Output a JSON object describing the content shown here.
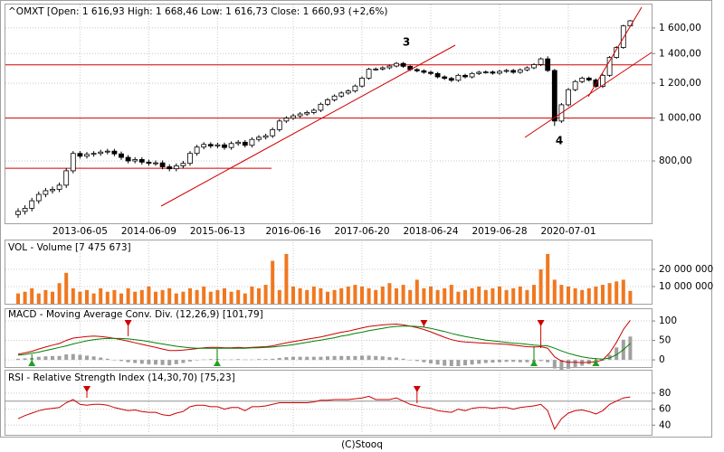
{
  "chart_data": [
    {
      "type": "candlestick",
      "title": "^OMXT [Open: 1 616,93  High: 1 668,46  Low: 1 616,73  Close: 1 660,93  (+2,6%)",
      "categories": [
        null,
        null,
        null,
        null,
        null,
        null,
        null,
        null,
        null,
        "2013-06-05",
        null,
        null,
        null,
        null,
        null,
        null,
        null,
        null,
        null,
        "2014-06-09",
        null,
        null,
        null,
        null,
        null,
        null,
        null,
        null,
        null,
        "2015-06-13",
        null,
        null,
        null,
        null,
        null,
        null,
        null,
        null,
        null,
        null,
        "2016-06-16",
        null,
        null,
        null,
        null,
        null,
        null,
        null,
        null,
        null,
        "2017-06-20",
        null,
        null,
        null,
        null,
        null,
        null,
        null,
        null,
        null,
        "2018-06-24",
        null,
        null,
        null,
        null,
        null,
        null,
        null,
        null,
        null,
        "2019-06-28",
        null,
        null,
        null,
        null,
        null,
        null,
        null,
        null,
        null,
        "2020-07-01",
        null,
        null,
        null,
        null,
        null,
        null,
        null,
        null,
        null
      ],
      "open": [
        605,
        615,
        625,
        650,
        672,
        685,
        690,
        705,
        760,
        832,
        820,
        828,
        832,
        838,
        842,
        830,
        815,
        800,
        806,
        795,
        790,
        792,
        776,
        768,
        780,
        790,
        832,
        860,
        872,
        865,
        870,
        858,
        876,
        882,
        868,
        895,
        905,
        912,
        942,
        985,
        1000,
        1012,
        1022,
        1030,
        1042,
        1075,
        1100,
        1122,
        1140,
        1152,
        1182,
        1232,
        1290,
        1292,
        1300,
        1312,
        1330,
        1310,
        1288,
        1280,
        1270,
        1262,
        1240,
        1230,
        1218,
        1250,
        1240,
        1262,
        1270,
        1272,
        1264,
        1276,
        1282,
        1270,
        1286,
        1300,
        1322,
        1362,
        1282,
        985,
        1072,
        1160,
        1210,
        1232,
        1220,
        1180,
        1250,
        1372,
        1445,
        1617
      ],
      "high": [
        625,
        635,
        660,
        682,
        695,
        700,
        715,
        770,
        842,
        842,
        838,
        842,
        848,
        852,
        852,
        840,
        825,
        816,
        816,
        805,
        802,
        802,
        786,
        790,
        800,
        842,
        870,
        882,
        882,
        880,
        880,
        886,
        892,
        892,
        905,
        915,
        922,
        952,
        995,
        1010,
        1022,
        1032,
        1040,
        1052,
        1085,
        1110,
        1132,
        1150,
        1162,
        1192,
        1242,
        1300,
        1302,
        1310,
        1322,
        1340,
        1340,
        1320,
        1298,
        1290,
        1280,
        1272,
        1250,
        1240,
        1260,
        1260,
        1272,
        1280,
        1282,
        1282,
        1286,
        1292,
        1292,
        1296,
        1310,
        1332,
        1372,
        1380,
        1292,
        1082,
        1170,
        1220,
        1242,
        1242,
        1230,
        1260,
        1382,
        1455,
        1627,
        1668
      ],
      "low": [
        595,
        605,
        615,
        640,
        662,
        675,
        680,
        695,
        750,
        810,
        810,
        818,
        822,
        828,
        820,
        805,
        790,
        790,
        785,
        780,
        780,
        766,
        758,
        758,
        770,
        780,
        822,
        850,
        855,
        855,
        848,
        848,
        866,
        858,
        858,
        885,
        895,
        902,
        932,
        975,
        990,
        1002,
        1012,
        1020,
        1032,
        1065,
        1090,
        1112,
        1130,
        1142,
        1172,
        1222,
        1280,
        1282,
        1290,
        1302,
        1300,
        1278,
        1270,
        1260,
        1252,
        1230,
        1220,
        1208,
        1208,
        1230,
        1230,
        1252,
        1260,
        1254,
        1254,
        1266,
        1260,
        1260,
        1276,
        1290,
        1312,
        1272,
        960,
        975,
        1062,
        1150,
        1200,
        1210,
        1170,
        1170,
        1240,
        1362,
        1435,
        1617
      ],
      "close": [
        615,
        625,
        650,
        672,
        685,
        690,
        705,
        760,
        832,
        820,
        828,
        832,
        838,
        842,
        830,
        815,
        800,
        806,
        795,
        790,
        792,
        776,
        768,
        780,
        790,
        832,
        860,
        872,
        865,
        870,
        858,
        876,
        882,
        868,
        895,
        905,
        912,
        942,
        985,
        1000,
        1012,
        1022,
        1030,
        1042,
        1075,
        1100,
        1122,
        1140,
        1152,
        1182,
        1232,
        1290,
        1292,
        1300,
        1312,
        1330,
        1310,
        1288,
        1280,
        1270,
        1262,
        1240,
        1230,
        1218,
        1250,
        1240,
        1262,
        1270,
        1272,
        1264,
        1276,
        1282,
        1270,
        1286,
        1300,
        1322,
        1362,
        1282,
        985,
        1072,
        1160,
        1210,
        1232,
        1220,
        1180,
        1250,
        1372,
        1445,
        1617,
        1661
      ],
      "up_color": "#ffffff",
      "down_color": "#000000",
      "log_scale": true,
      "ylim": [
        578,
        1808
      ],
      "yticks": [
        {
          "value": 800,
          "label": "800,00"
        },
        {
          "value": 1000,
          "label": "1 000,00"
        },
        {
          "value": 1200,
          "label": "1 200,00"
        },
        {
          "value": 1400,
          "label": "1 400,00"
        },
        {
          "value": 1600,
          "label": "1 600,00"
        }
      ],
      "grid": true,
      "levels": [
        1320,
        1000,
        770
      ],
      "level_color": "#d00000",
      "annotations": [
        "3",
        "4"
      ],
      "annotation_color": "#d00000"
    },
    {
      "type": "bar",
      "title": "VOL - Volume [7 475 673]",
      "color": "#f07820",
      "values": [
        6000000,
        7000000,
        9000000,
        6000000,
        8000000,
        7000000,
        12000000,
        18000000,
        9000000,
        7000000,
        8000000,
        6000000,
        9000000,
        7000000,
        8000000,
        6000000,
        9000000,
        7000000,
        8000000,
        10000000,
        7000000,
        8000000,
        9000000,
        6000000,
        7000000,
        9000000,
        8000000,
        10000000,
        7000000,
        8000000,
        9000000,
        7000000,
        8000000,
        6000000,
        10000000,
        9000000,
        11000000,
        25000000,
        8000000,
        29000000,
        10000000,
        9000000,
        8000000,
        10000000,
        9000000,
        7000000,
        8000000,
        9000000,
        10000000,
        11000000,
        10000000,
        9000000,
        8000000,
        10000000,
        12000000,
        9000000,
        11000000,
        8000000,
        14000000,
        9000000,
        10000000,
        8000000,
        9000000,
        11000000,
        7000000,
        8000000,
        9000000,
        10000000,
        8000000,
        9000000,
        10000000,
        8000000,
        9000000,
        10000000,
        8000000,
        11000000,
        20000000,
        29000000,
        14000000,
        11000000,
        10000000,
        9000000,
        8000000,
        9000000,
        10000000,
        11000000,
        12000000,
        13000000,
        14000000,
        7475673
      ],
      "ylim": [
        0,
        35800000
      ],
      "yticks": [
        {
          "value": 10000000,
          "label": "10 000 000"
        },
        {
          "value": 20000000,
          "label": "20 000 000"
        }
      ],
      "grid": true
    },
    {
      "type": "line",
      "title": "MACD - Moving Average Conv. Div. (12,26,9) [101,79]",
      "series": [
        {
          "color": "#cc0000",
          "values": [
            15,
            18,
            22,
            28,
            33,
            38,
            42,
            50,
            56,
            58,
            60,
            61,
            60,
            58,
            55,
            52,
            48,
            44,
            40,
            36,
            32,
            28,
            24,
            24,
            25,
            27,
            29,
            31,
            32,
            32,
            31,
            31,
            32,
            31,
            32,
            33,
            34,
            36,
            40,
            44,
            47,
            50,
            53,
            56,
            59,
            63,
            67,
            71,
            74,
            78,
            82,
            86,
            88,
            90,
            91,
            92,
            90,
            87,
            83,
            78,
            72,
            65,
            58,
            52,
            48,
            46,
            45,
            44,
            43,
            42,
            41,
            40,
            38,
            36,
            34,
            33,
            34,
            30,
            8,
            -3,
            -6,
            -6,
            -7,
            -6,
            -5,
            0,
            18,
            45,
            78,
            101.79
          ]
        },
        {
          "color": "#008000",
          "values": [
            12,
            14,
            17,
            20,
            24,
            28,
            32,
            36,
            41,
            45,
            49,
            52,
            54,
            55,
            55,
            55,
            54,
            52,
            50,
            47,
            44,
            41,
            38,
            35,
            33,
            31,
            30,
            30,
            30,
            30,
            30,
            30,
            30,
            30,
            31,
            31,
            32,
            33,
            35,
            37,
            39,
            42,
            45,
            48,
            51,
            54,
            57,
            61,
            64,
            68,
            71,
            75,
            78,
            81,
            84,
            86,
            87,
            87,
            86,
            84,
            81,
            77,
            73,
            68,
            64,
            60,
            57,
            54,
            51,
            49,
            47,
            45,
            43,
            42,
            40,
            38,
            37,
            36,
            30,
            23,
            17,
            12,
            8,
            5,
            3,
            2,
            5,
            13,
            26,
            42
          ]
        }
      ],
      "histogram": {
        "color": "#a0a0a0",
        "values": [
          3,
          4,
          5,
          8,
          9,
          10,
          10,
          14,
          15,
          13,
          11,
          9,
          6,
          3,
          0,
          -3,
          -6,
          -8,
          -10,
          -11,
          -12,
          -13,
          -14,
          -11,
          -8,
          -4,
          -1,
          1,
          2,
          2,
          1,
          1,
          2,
          1,
          1,
          2,
          2,
          3,
          5,
          7,
          8,
          8,
          8,
          8,
          8,
          9,
          10,
          10,
          10,
          10,
          11,
          11,
          10,
          9,
          7,
          6,
          3,
          0,
          -3,
          -6,
          -9,
          -12,
          -15,
          -16,
          -16,
          -14,
          -12,
          -10,
          -8,
          -7,
          -6,
          -5,
          -5,
          -6,
          -6,
          -5,
          -3,
          -6,
          -22,
          -26,
          -23,
          -18,
          -15,
          -11,
          -8,
          -2,
          13,
          32,
          52,
          60
        ]
      },
      "ylim": [
        -16,
        128
      ],
      "yticks": [
        0,
        50,
        100
      ],
      "grid": true
    },
    {
      "type": "line",
      "title": "RSI - Relative Strength Index (14,30,70) [75,23]",
      "series": [
        {
          "color": "#cc0000",
          "values": [
            48,
            52,
            55,
            58,
            60,
            61,
            62,
            68,
            72,
            66,
            65,
            66,
            66,
            65,
            62,
            60,
            58,
            59,
            57,
            56,
            56,
            53,
            52,
            55,
            57,
            63,
            65,
            65,
            63,
            63,
            60,
            62,
            62,
            58,
            63,
            63,
            64,
            66,
            68,
            68,
            68,
            68,
            68,
            69,
            71,
            71,
            72,
            72,
            72,
            73,
            74,
            76,
            72,
            72,
            72,
            74,
            70,
            66,
            64,
            62,
            61,
            58,
            57,
            56,
            60,
            58,
            61,
            62,
            62,
            61,
            62,
            62,
            60,
            62,
            63,
            64,
            66,
            58,
            35,
            48,
            55,
            58,
            59,
            57,
            54,
            58,
            66,
            70,
            74,
            75.23
          ]
        }
      ],
      "reference": 70,
      "reference_color": "#909090",
      "ylim": [
        29,
        107
      ],
      "yticks": [
        40,
        60,
        80
      ],
      "grid": true
    }
  ],
  "footer": "(C)Stooq"
}
